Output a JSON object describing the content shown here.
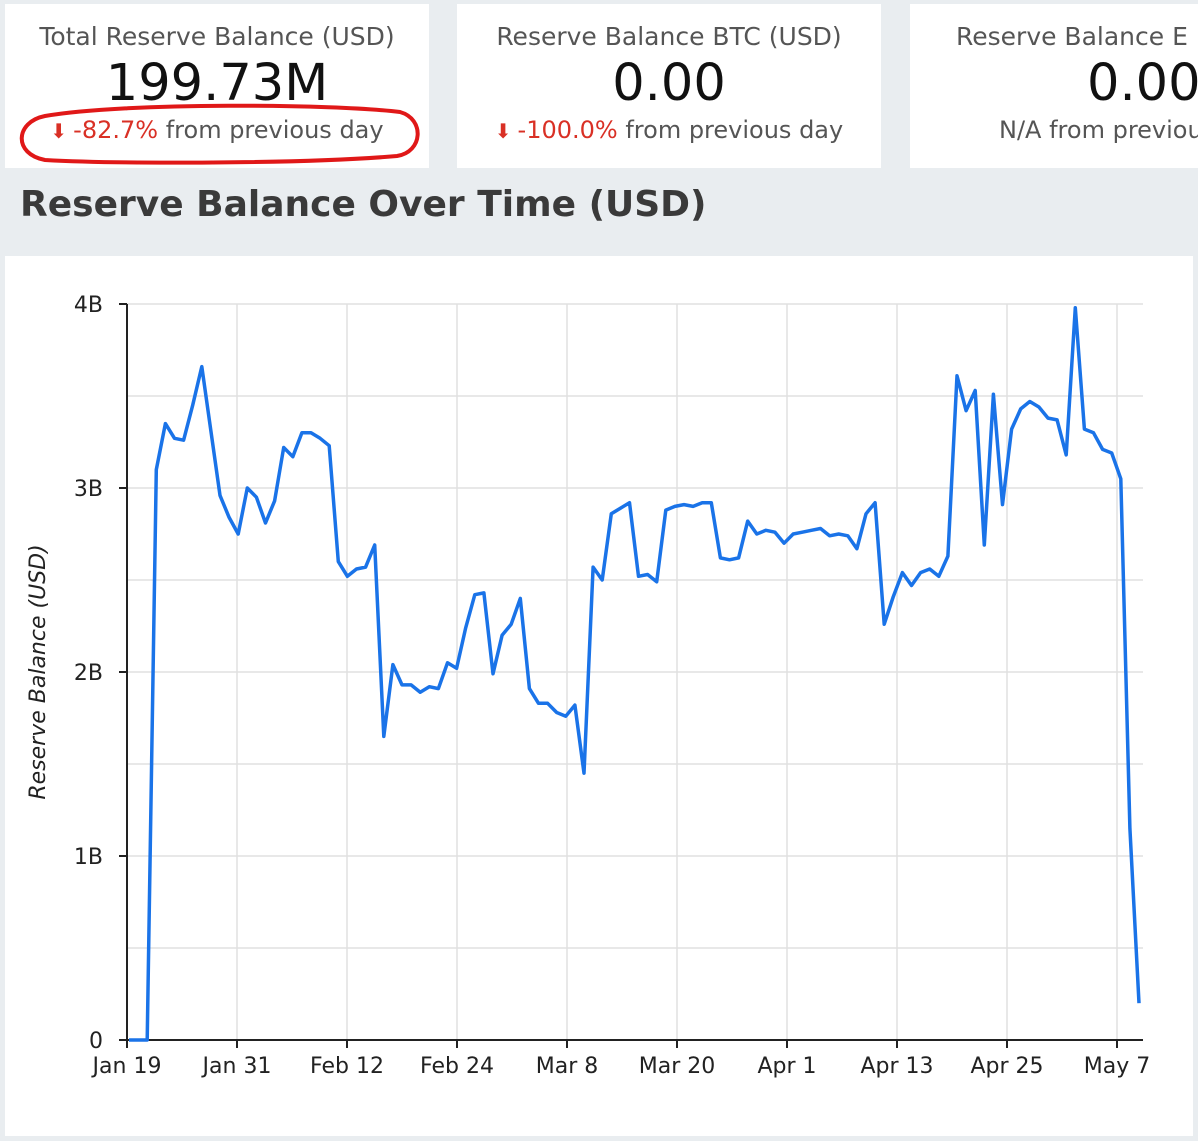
{
  "scorecards": [
    {
      "title": "Total Reserve Balance (USD)",
      "value": "199.73M",
      "delta_pct": "-82.7%",
      "delta_text": "from previous day",
      "has_arrow": true
    },
    {
      "title": "Reserve Balance BTC (USD)",
      "value": "0.00",
      "delta_pct": "-100.0%",
      "delta_text": "from previous day",
      "has_arrow": true
    },
    {
      "title": "Reserve Balance ETH (USD)",
      "title_visible": "Reserve Balance E",
      "value": "0.00",
      "delta_pct": "N/A",
      "delta_text": "from previous day",
      "has_arrow": false
    }
  ],
  "section_title": "Reserve Balance Over Time (USD)",
  "colors": {
    "line": "#1a73e8",
    "negative": "#d93025",
    "annotation": "#e01818",
    "grid": "#e0e0e0"
  },
  "chart_data": {
    "type": "line",
    "ylabel": "Reserve Balance (USD)",
    "xlabel": "",
    "ylim": [
      0,
      4000000000
    ],
    "yticks": [
      0,
      1000000000,
      2000000000,
      3000000000,
      4000000000
    ],
    "ytick_labels": [
      "0",
      "1B",
      "2B",
      "3B",
      "4B"
    ],
    "xtick_labels": [
      "Jan 19",
      "Jan 31",
      "Feb 12",
      "Feb 24",
      "Mar 8",
      "Mar 20",
      "Apr 1",
      "Apr 13",
      "Apr 25",
      "May 7"
    ],
    "grid": true,
    "series": [
      {
        "values": [
          0,
          0,
          0,
          3.1,
          3.35,
          3.27,
          3.26,
          3.45,
          3.66,
          3.31,
          2.96,
          2.84,
          2.75,
          3.0,
          2.95,
          2.81,
          2.93,
          3.22,
          3.17,
          3.3,
          3.3,
          3.27,
          3.23,
          2.6,
          2.52,
          2.56,
          2.57,
          2.69,
          1.65,
          2.04,
          1.93,
          1.93,
          1.89,
          1.92,
          1.91,
          2.05,
          2.02,
          2.24,
          2.42,
          2.43,
          1.99,
          2.2,
          2.26,
          2.4,
          1.91,
          1.83,
          1.83,
          1.78,
          1.76,
          1.82,
          1.45,
          2.57,
          2.5,
          2.86,
          2.89,
          2.92,
          2.52,
          2.53,
          2.49,
          2.88,
          2.9,
          2.91,
          2.9,
          2.92,
          2.92,
          2.62,
          2.61,
          2.62,
          2.82,
          2.75,
          2.77,
          2.76,
          2.7,
          2.75,
          2.76,
          2.77,
          2.78,
          2.74,
          2.75,
          2.74,
          2.67,
          2.86,
          2.92,
          2.26,
          2.41,
          2.54,
          2.47,
          2.54,
          2.56,
          2.52,
          2.63,
          3.61,
          3.42,
          3.53,
          2.69,
          3.51,
          2.91,
          3.32,
          3.43,
          3.47,
          3.44,
          3.38,
          3.37,
          3.18,
          3.98,
          3.32,
          3.3,
          3.21,
          3.19,
          3.05,
          1.15,
          0.2
        ]
      }
    ]
  }
}
